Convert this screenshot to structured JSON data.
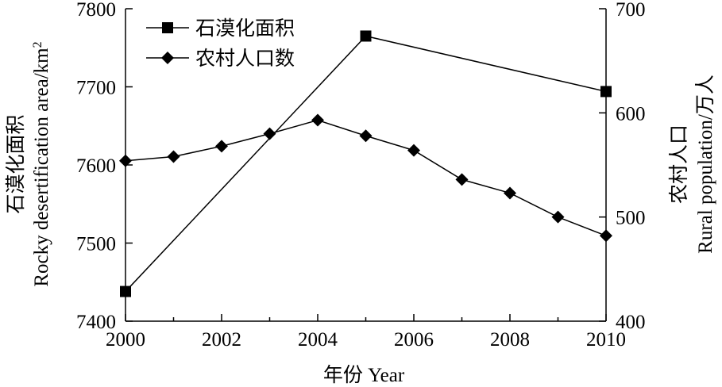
{
  "chart_data": {
    "type": "line",
    "x_title": "年份 Year",
    "y_left_title_cn": "石漠化面积",
    "y_left_title_en": "Rocky desertification area/km²",
    "y_right_title_cn": "农村人口",
    "y_right_title_en": "Rural population/万人",
    "xlim": [
      2000,
      2010
    ],
    "x_ticks": [
      2000,
      2002,
      2004,
      2006,
      2008,
      2010
    ],
    "y_left_lim": [
      7400,
      7800
    ],
    "y_left_ticks": [
      7400,
      7500,
      7600,
      7700,
      7800
    ],
    "y_right_lim": [
      400,
      700
    ],
    "y_right_ticks": [
      400,
      500,
      600,
      700
    ],
    "grid": false,
    "legend_position": "top-left",
    "series": [
      {
        "name": "石漠化面积",
        "axis": "left",
        "marker": "square",
        "color": "#000000",
        "points": [
          [
            2000,
            7438
          ],
          [
            2005,
            7765
          ],
          [
            2010,
            7694
          ]
        ]
      },
      {
        "name": "农村人口数",
        "axis": "right",
        "marker": "diamond",
        "color": "#000000",
        "points": [
          [
            2000,
            554
          ],
          [
            2001,
            558
          ],
          [
            2002,
            568
          ],
          [
            2003,
            580
          ],
          [
            2004,
            593
          ],
          [
            2005,
            578
          ],
          [
            2006,
            564
          ],
          [
            2007,
            536
          ],
          [
            2008,
            523
          ],
          [
            2009,
            500
          ],
          [
            2010,
            482
          ]
        ]
      }
    ]
  }
}
